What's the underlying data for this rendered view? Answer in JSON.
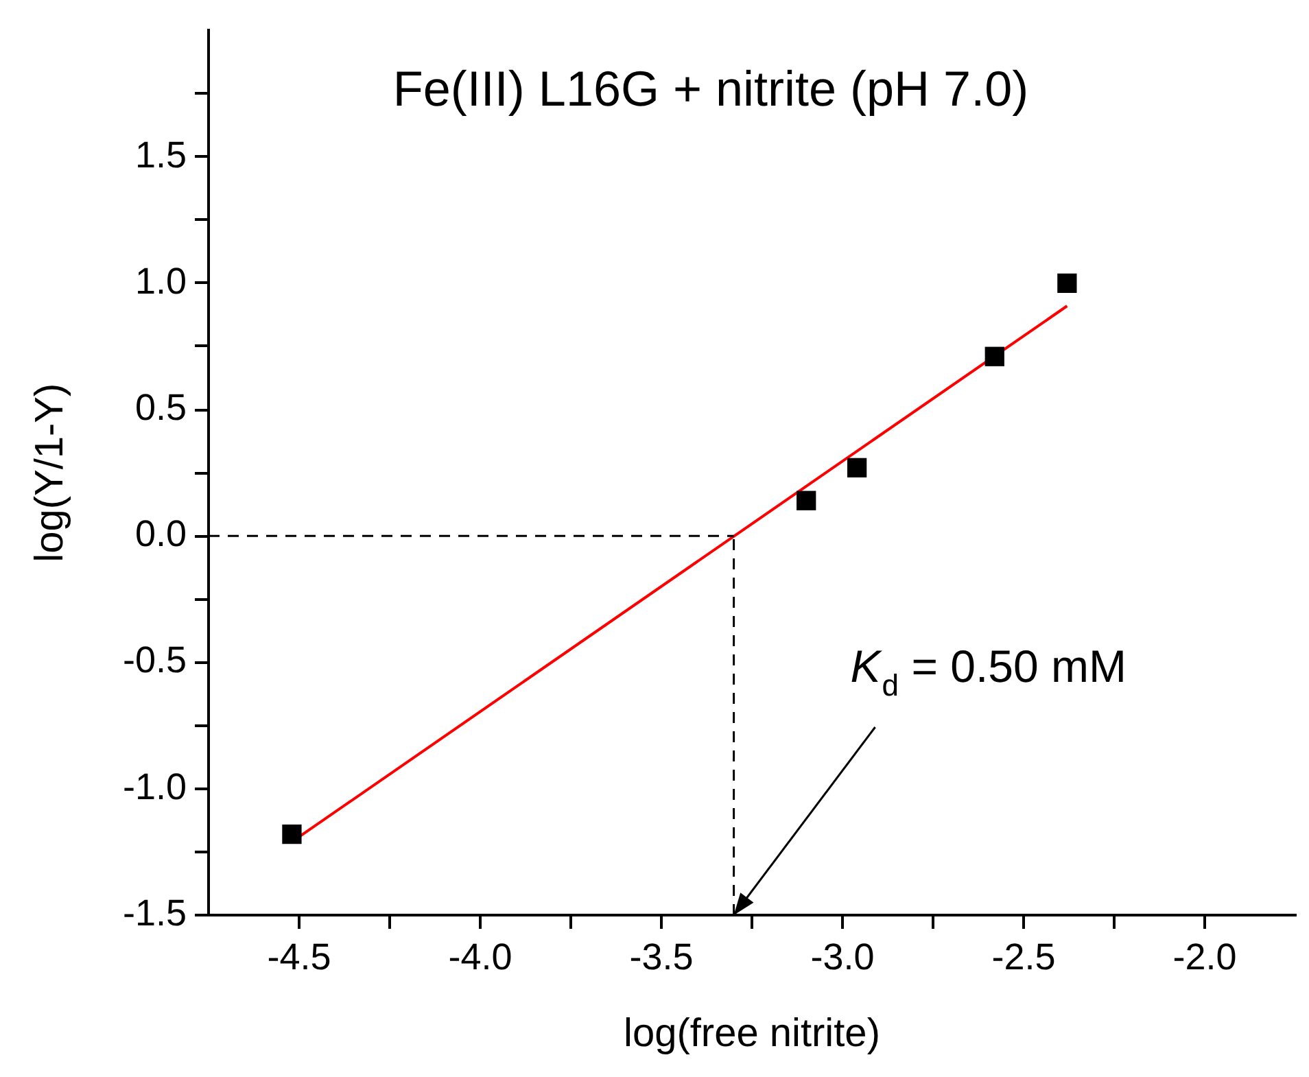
{
  "chart_data": {
    "type": "scatter",
    "title": "Fe(III) L16G + nitrite (pH 7.0)",
    "xlabel": "log(free nitrite)",
    "ylabel": "log(Y/1-Y)",
    "marker": "square",
    "x": [
      -4.52,
      -3.1,
      -2.96,
      -2.58,
      -2.38
    ],
    "series": [
      {
        "color": "#000000",
        "values": [
          -1.18,
          0.14,
          0.27,
          0.71,
          1.0
        ]
      },
      {
        "type": "line",
        "x": [
          -4.52,
          -2.38
        ],
        "values": [
          -1.21,
          0.91
        ],
        "color": "#ff0000",
        "marker": "none"
      }
    ],
    "xlim": [
      -4.75,
      -1.75
    ],
    "ylim": [
      -1.5,
      2.0
    ],
    "xticks": [
      {
        "value": -4.5,
        "label": "-4.5"
      },
      {
        "value": -4.25,
        "label": null
      },
      {
        "value": -4,
        "label": "-4.0"
      },
      {
        "value": -3.75,
        "label": null
      },
      {
        "value": -3.5,
        "label": "-3.5"
      },
      {
        "value": -3.25,
        "label": null
      },
      {
        "value": -3,
        "label": "-3.0"
      },
      {
        "value": -2.75,
        "label": null
      },
      {
        "value": -2.5,
        "label": "-2.5"
      },
      {
        "value": -2.25,
        "label": null
      },
      {
        "value": -2,
        "label": "-2.0"
      }
    ],
    "yticks": [
      {
        "value": -1.5,
        "label": "-1.5"
      },
      {
        "value": -1.25,
        "label": null
      },
      {
        "value": -1,
        "label": "-1.0"
      },
      {
        "value": -0.75,
        "label": null
      },
      {
        "value": -0.5,
        "label": "-0.5"
      },
      {
        "value": -0.25,
        "label": null
      },
      {
        "value": 0,
        "label": "0.0"
      },
      {
        "value": 0.25,
        "label": null
      },
      {
        "value": 0.5,
        "label": "0.5"
      },
      {
        "value": 0.75,
        "label": null
      },
      {
        "value": 1,
        "label": "1.0"
      },
      {
        "value": 1.25,
        "label": null
      },
      {
        "value": 1.5,
        "label": "1.5"
      },
      {
        "value": 1.75,
        "label": null
      }
    ],
    "ref_lines": [
      {
        "axis": "y",
        "value": 0,
        "color": "#000000",
        "line_style": "dashed"
      },
      {
        "axis": "x",
        "value": -3.3,
        "color": "#000000",
        "line_style": "dashed"
      }
    ],
    "annotations": [
      {
        "text": "K$_{d}$ = 0.50 mM",
        "x": -3.3,
        "y": -1.5
      }
    ]
  }
}
